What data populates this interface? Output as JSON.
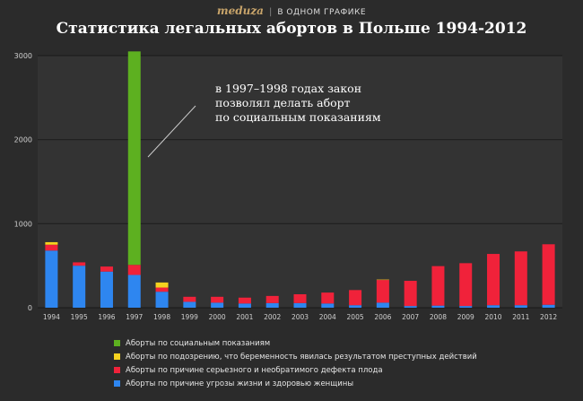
{
  "header": {
    "logo": "meduza",
    "section": "В ОДНОМ ГРАФИКЕ"
  },
  "chart_data": {
    "type": "bar",
    "stacked": true,
    "title": "Статистика легальных абортов в Польше 1994-2012",
    "categories": [
      "1994",
      "1995",
      "1996",
      "1997",
      "1998",
      "1999",
      "2000",
      "2001",
      "2002",
      "2003",
      "2004",
      "2005",
      "2006",
      "2007",
      "2008",
      "2009",
      "2010",
      "2011",
      "2012"
    ],
    "ylim": [
      0,
      3000
    ],
    "yticks": [
      0,
      1000,
      2000,
      3000
    ],
    "grid": true,
    "legend_position": "bottom",
    "series": [
      {
        "name": "Аборты по причине угрозы жизни и здоровью женщины",
        "color": "#2e86f0",
        "values": [
          680,
          500,
          430,
          390,
          190,
          70,
          60,
          50,
          55,
          55,
          50,
          30,
          60,
          20,
          25,
          20,
          30,
          30,
          35
        ]
      },
      {
        "name": "Аборты по причине серьезного и необратимого дефекта плода",
        "color": "#f0223a",
        "values": [
          70,
          40,
          60,
          120,
          50,
          60,
          70,
          70,
          85,
          105,
          130,
          180,
          270,
          300,
          470,
          510,
          610,
          640,
          720
        ]
      },
      {
        "name": "Аборты по подозрению, что беременность явилась результатом преступных действий",
        "color": "#f5d21f",
        "values": [
          30,
          0,
          0,
          0,
          60,
          0,
          0,
          0,
          0,
          0,
          0,
          0,
          5,
          0,
          0,
          0,
          0,
          0,
          0
        ]
      },
      {
        "name": "Аборты по социальным показаниям",
        "color": "#5db020",
        "values": [
          0,
          0,
          0,
          2540,
          0,
          0,
          0,
          0,
          0,
          0,
          0,
          0,
          0,
          0,
          0,
          0,
          0,
          0,
          0
        ]
      }
    ],
    "legend_order": [
      3,
      2,
      1,
      0
    ],
    "annotation": "в 1997–1998 годах закон позволял делать аборт по социальным показаниям",
    "annotation_lines": [
      "в 1997–1998 годах закон",
      "позволял делать аборт",
      "по социальным показаниям"
    ]
  }
}
